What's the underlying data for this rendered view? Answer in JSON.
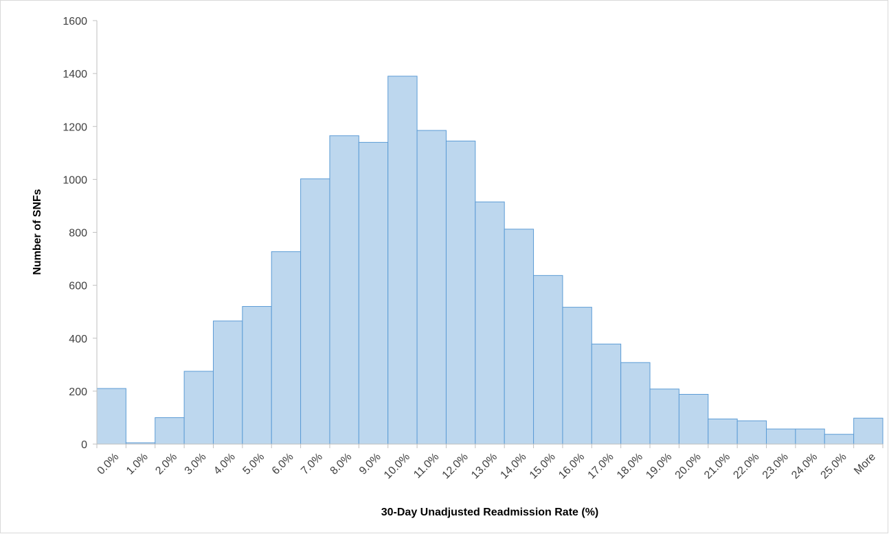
{
  "chart_data": {
    "type": "bar",
    "title": "",
    "xlabel": "30-Day Unadjusted Readmission Rate (%)",
    "ylabel": "Number of SNFs",
    "ylim": [
      0,
      1600
    ],
    "yticks": [
      0,
      200,
      400,
      600,
      800,
      1000,
      1200,
      1400,
      1600
    ],
    "grid": false,
    "legend": "none",
    "bar_fill": "#bdd7ee",
    "bar_stroke": "#5b9bd5",
    "categories": [
      "0.0%",
      "1.0%",
      "2.0%",
      "3.0%",
      "4.0%",
      "5.0%",
      "6.0%",
      "7.0%",
      "8.0%",
      "9.0%",
      "10.0%",
      "11.0%",
      "12.0%",
      "13.0%",
      "14.0%",
      "15.0%",
      "16.0%",
      "17.0%",
      "18.0%",
      "19.0%",
      "20.0%",
      "21.0%",
      "22.0%",
      "23.0%",
      "24.0%",
      "25.0%",
      "More"
    ],
    "values": [
      210,
      5,
      100,
      275,
      465,
      520,
      727,
      1002,
      1165,
      1140,
      1390,
      1185,
      1145,
      915,
      812,
      637,
      517,
      378,
      308,
      208,
      188,
      95,
      88,
      57,
      57,
      37,
      98
    ]
  }
}
